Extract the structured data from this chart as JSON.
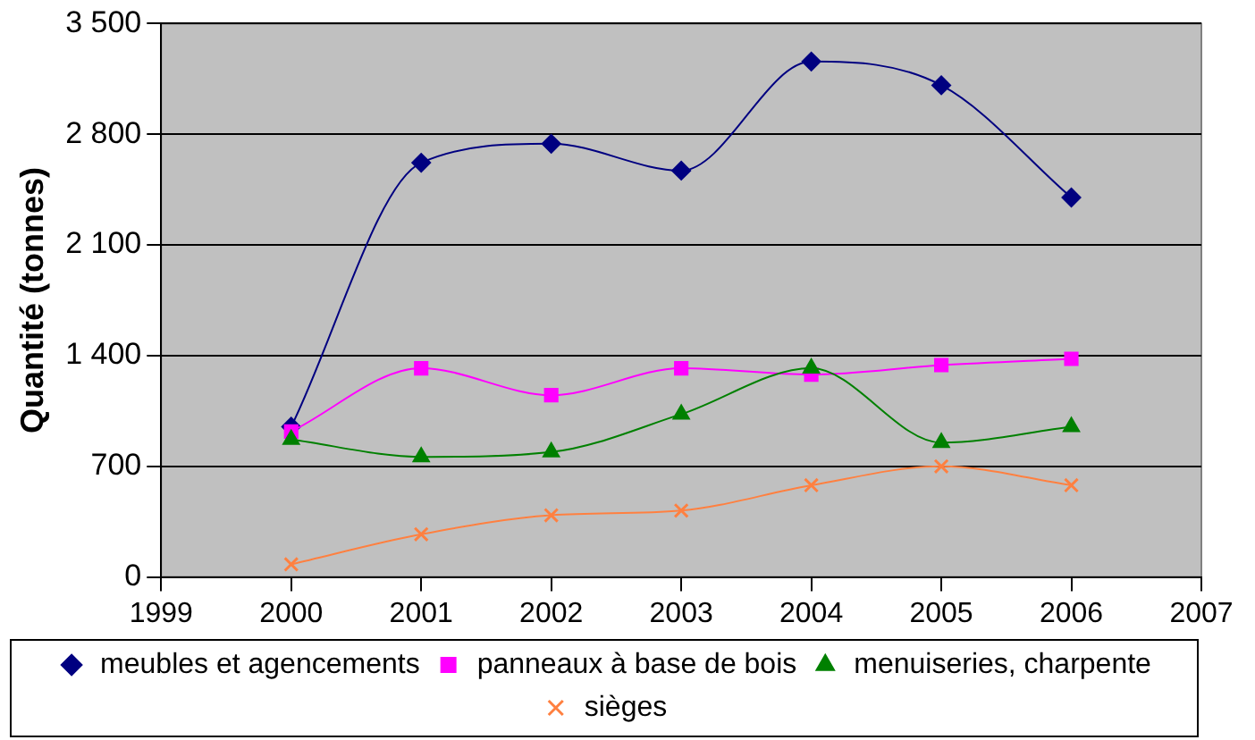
{
  "chart_data": {
    "type": "line",
    "ylabel": "Quantité (tonnes)",
    "x": [
      2000,
      2001,
      2002,
      2003,
      2004,
      2005,
      2006
    ],
    "xlim": [
      1999,
      2007
    ],
    "xticks": [
      1999,
      2000,
      2001,
      2002,
      2003,
      2004,
      2005,
      2006,
      2007
    ],
    "ylim": [
      0,
      3500
    ],
    "yticks": [
      0,
      700,
      {
        "value": 1400,
        "label": "1 400"
      },
      {
        "value": 2100,
        "label": "2 100"
      },
      {
        "value": 2800,
        "label": "2 800"
      },
      {
        "value": 3500,
        "label": "3 500"
      }
    ],
    "grid": "y",
    "legend": "bottom",
    "series": [
      {
        "name": "meubles et agencements",
        "color": "#000080",
        "marker": "diamond",
        "values": [
          950,
          2620,
          2740,
          2570,
          3260,
          3110,
          2400
        ]
      },
      {
        "name": "panneaux à base de bois",
        "color": "#ff00ff",
        "marker": "square",
        "values": [
          920,
          1320,
          1150,
          1320,
          1280,
          1340,
          1380
        ]
      },
      {
        "name": "menuiseries, charpente",
        "color": "#008000",
        "marker": "triangle",
        "values": [
          870,
          760,
          790,
          1030,
          1320,
          850,
          950
        ]
      },
      {
        "name": "sièges",
        "color": "#ff8040",
        "marker": "cross",
        "values": [
          80,
          270,
          390,
          420,
          580,
          700,
          580
        ]
      }
    ]
  }
}
